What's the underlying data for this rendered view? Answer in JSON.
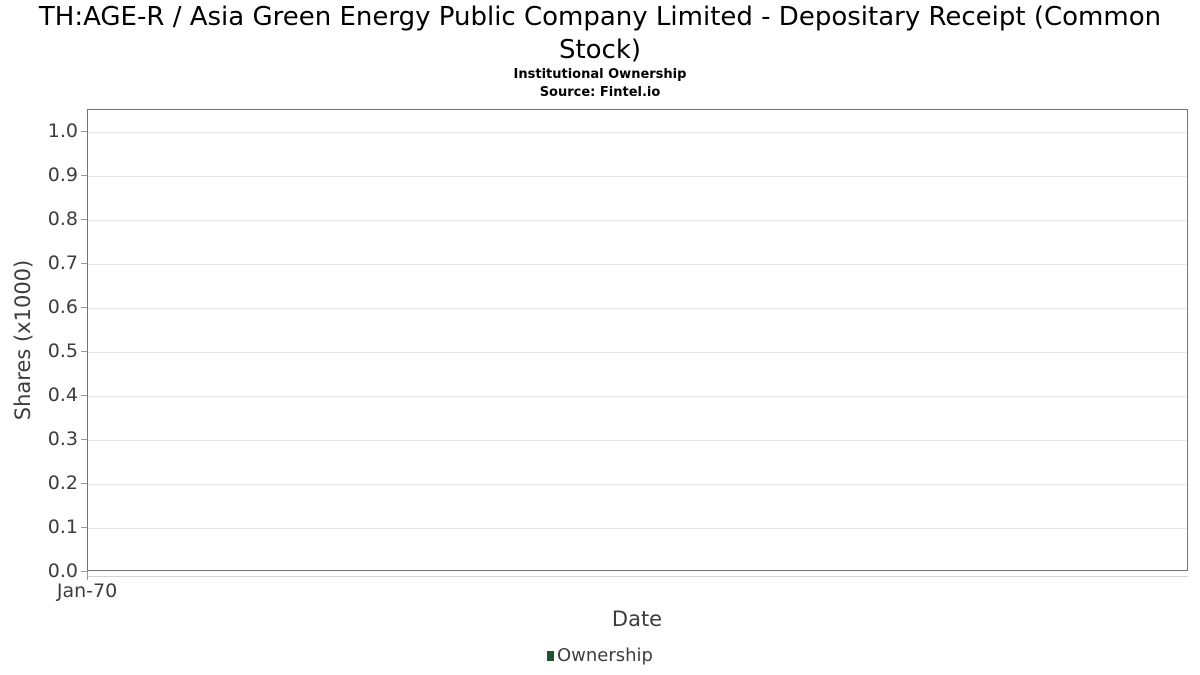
{
  "chart_data": {
    "type": "line",
    "title": "TH:AGE-R / Asia Green Energy Public Company Limited - Depositary Receipt (Common Stock)",
    "subtitle": "Institutional Ownership",
    "source": "Source: Fintel.io",
    "xlabel": "Date",
    "ylabel": "Shares (x1000)",
    "ylim": [
      0,
      1.05
    ],
    "yticks": [
      0.0,
      0.1,
      0.2,
      0.3,
      0.4,
      0.5,
      0.6,
      0.7,
      0.8,
      0.9,
      1.0
    ],
    "ytick_labels": [
      "0.0",
      "0.1",
      "0.2",
      "0.3",
      "0.4",
      "0.5",
      "0.6",
      "0.7",
      "0.8",
      "0.9",
      "1.0"
    ],
    "xticks": [
      "Jan-70"
    ],
    "grid": true,
    "legend_position": "bottom",
    "series": [
      {
        "name": "Ownership",
        "color": "#1c5430",
        "x": [],
        "values": []
      }
    ]
  },
  "colors": {
    "accent_green": "#1c5430",
    "axis_text": "#3d3d3d",
    "plot_border": "#757575",
    "gridline": "#e4e4e4"
  }
}
